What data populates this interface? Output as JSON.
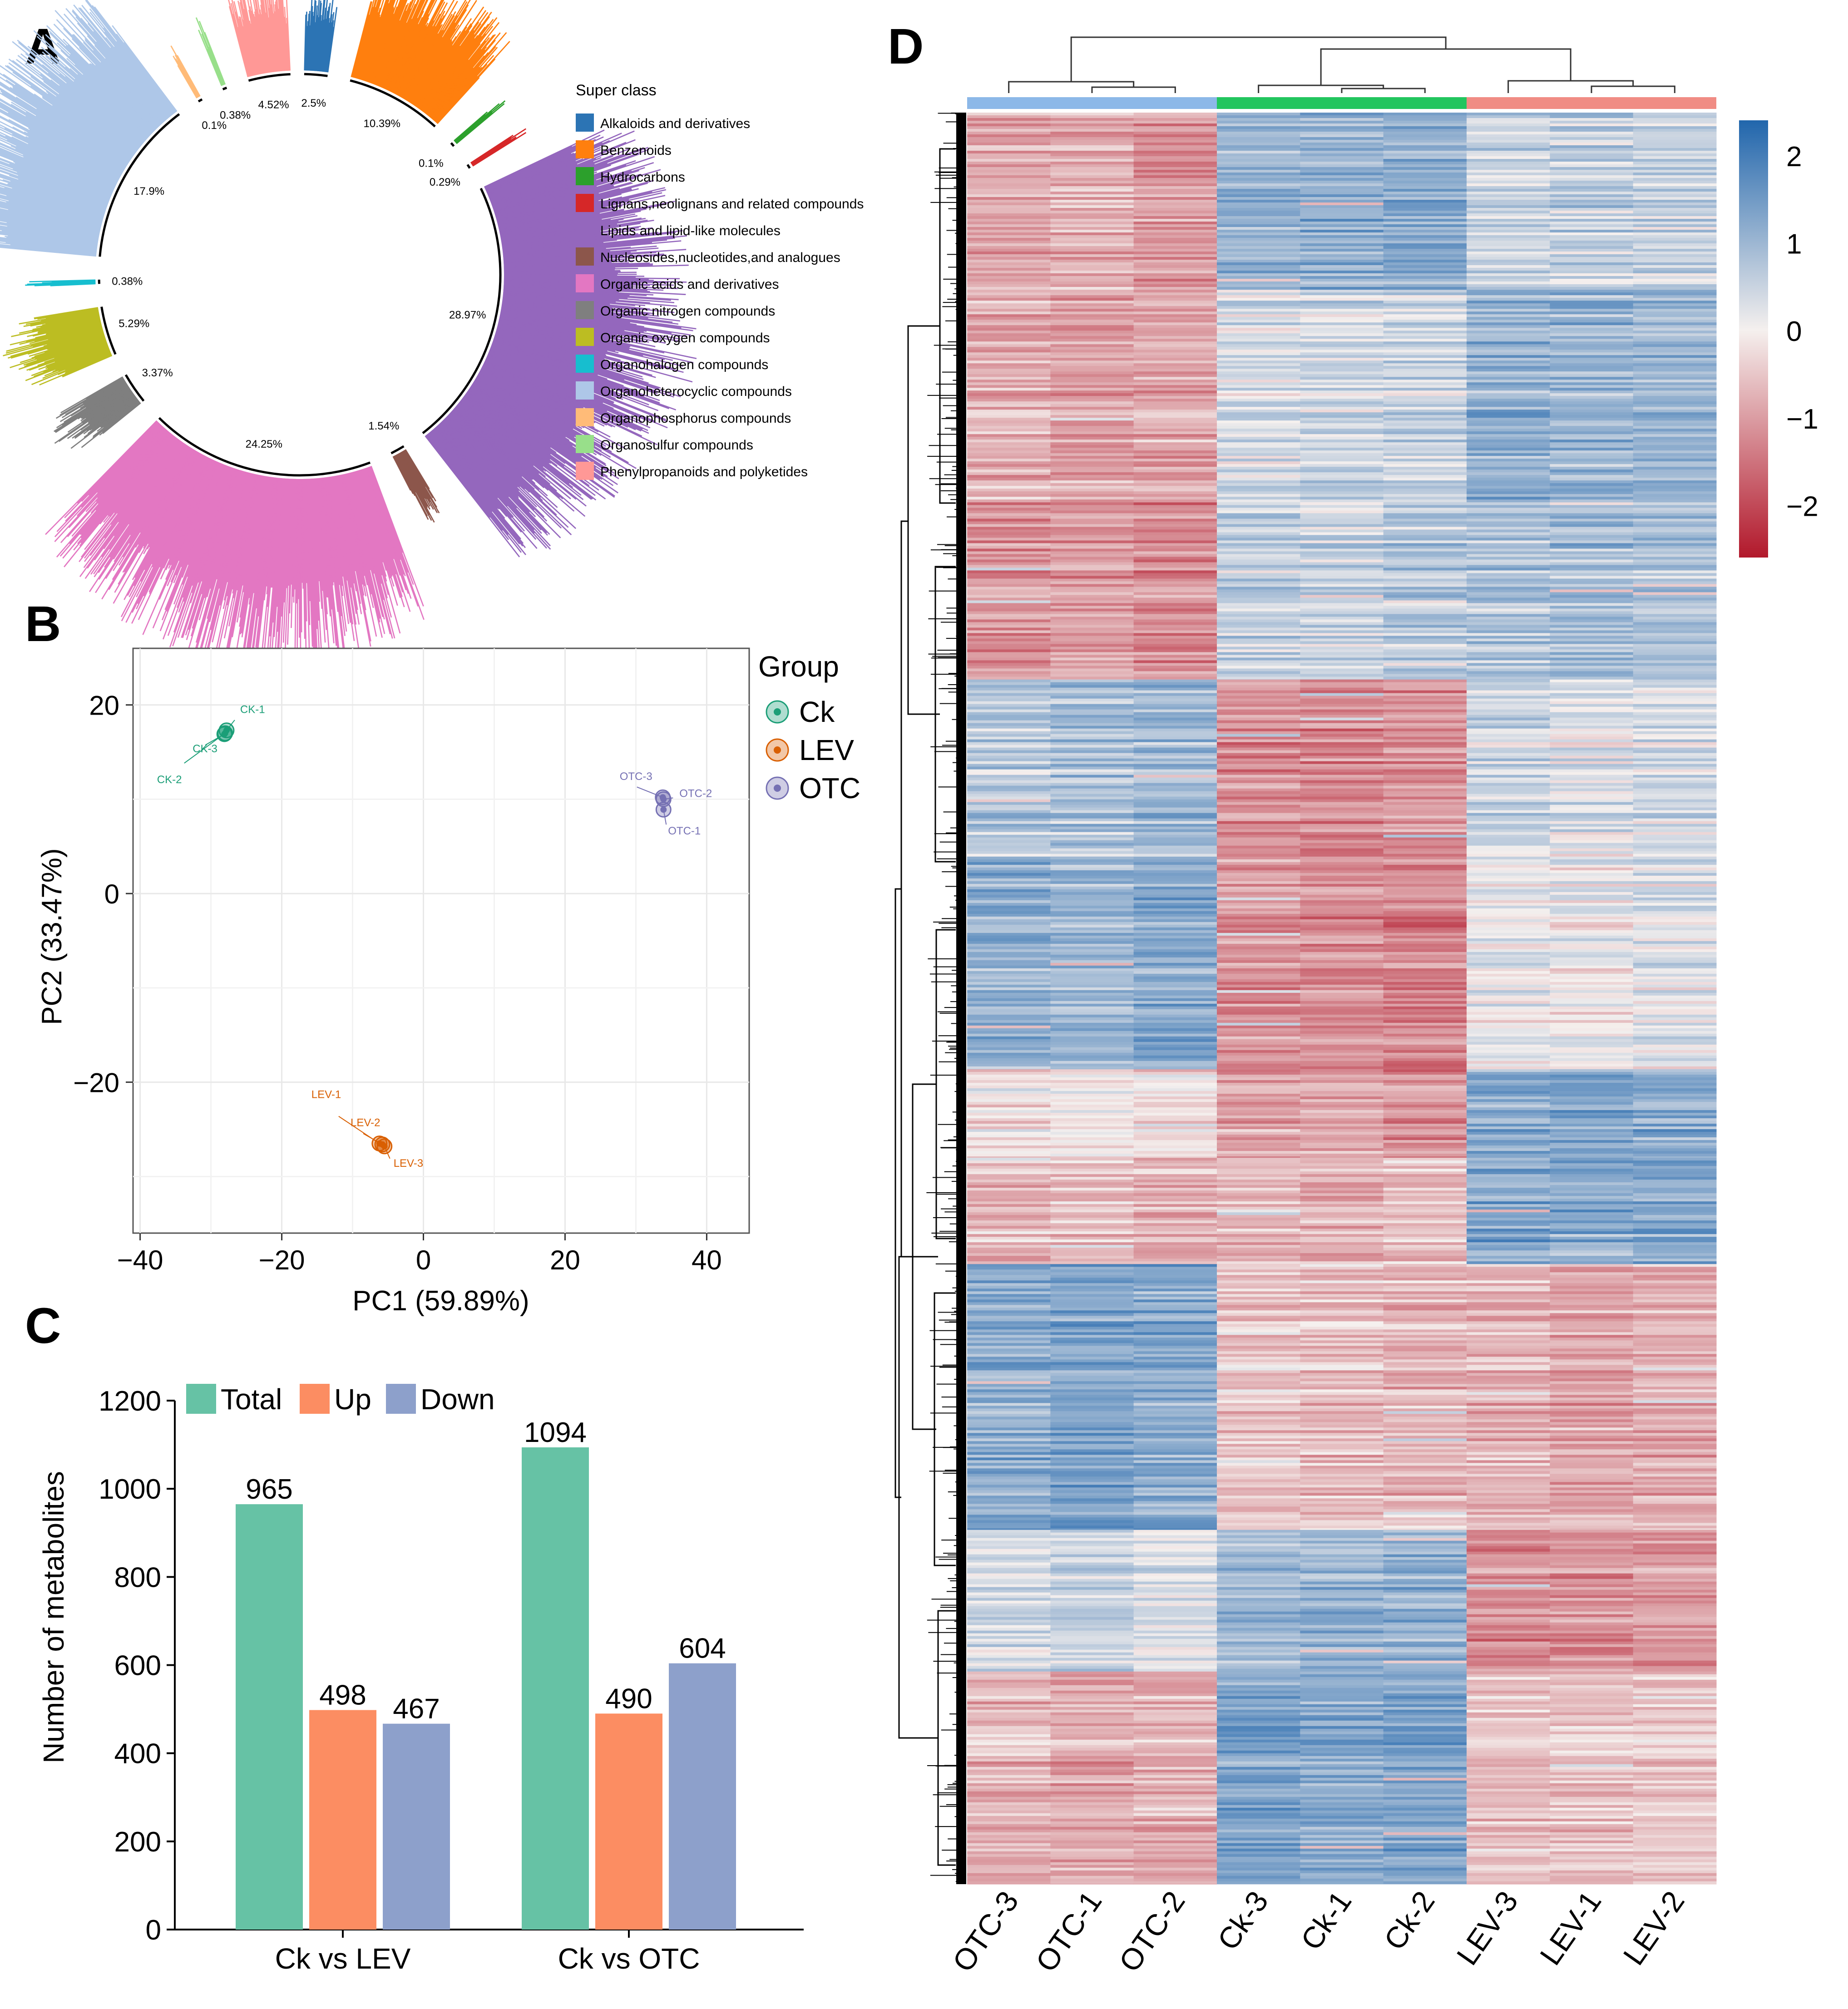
{
  "panels": {
    "A": "A",
    "B": "B",
    "C": "C",
    "D": "D"
  },
  "chart_data": [
    {
      "panel": "A",
      "type": "pie",
      "style": "circular radial bar plot",
      "legend_title": "Super class",
      "legend_position": "right",
      "slices": [
        {
          "name": "Alkaloids and derivatives",
          "percent": 2.5,
          "label": "2.5%",
          "color": "#2c74b4"
        },
        {
          "name": "Benzenoids",
          "percent": 10.39,
          "label": "10.39%",
          "color": "#ff7f0e"
        },
        {
          "name": "Hydrocarbons",
          "percent": 0.1,
          "label": "0.1%",
          "color": "#2ca02c"
        },
        {
          "name": "Lignans,neolignans and related compounds",
          "percent": 0.29,
          "label": "0.29%",
          "color": "#d62728"
        },
        {
          "name": "Lipids and lipid-like molecules",
          "percent": 28.97,
          "label": "28.97%",
          "color": "#9467bd"
        },
        {
          "name": "Nucleosides,nucleotides,and analogues",
          "percent": 1.54,
          "label": "1.54%",
          "color": "#8c564b"
        },
        {
          "name": "Organic acids and derivatives",
          "percent": 24.25,
          "label": "24.25%",
          "color": "#e377c2"
        },
        {
          "name": "Organic nitrogen compounds",
          "percent": 3.37,
          "label": "3.37%",
          "color": "#7f7f7f"
        },
        {
          "name": "Organic oxygen compounds",
          "percent": 5.29,
          "label": "5.29%",
          "color": "#bcbd22"
        },
        {
          "name": "Organohalogen compounds",
          "percent": 0.38,
          "label": "0.38%",
          "color": "#17becf"
        },
        {
          "name": "Organoheterocyclic compounds",
          "percent": 17.9,
          "label": "17.9%",
          "color": "#aec7e8"
        },
        {
          "name": "Organophosphorus compounds",
          "percent": 0.1,
          "label": "0.1%",
          "color": "#ffbb78"
        },
        {
          "name": "Organosulfur compounds",
          "percent": 0.38,
          "label": "0.38%",
          "color": "#98df8a"
        },
        {
          "name": "Phenylpropanoids and polyketides",
          "percent": 4.52,
          "label": "4.52%",
          "color": "#ff9896"
        }
      ]
    },
    {
      "panel": "B",
      "type": "scatter",
      "xlabel": "PC1 (59.89%)",
      "ylabel": "PC2 (33.47%)",
      "xlim": [
        -41,
        46
      ],
      "ylim": [
        -36,
        26
      ],
      "xticks": [
        -40,
        -20,
        0,
        20,
        40
      ],
      "yticks": [
        20,
        0,
        -20
      ],
      "grid": true,
      "legend_title": "Group",
      "legend_position": "right",
      "groups": [
        {
          "name": "Ck",
          "color": "#1b9e77",
          "points": [
            {
              "label": "CK-1",
              "x": -27.8,
              "y": 17.3
            },
            {
              "label": "CK-3",
              "x": -28.1,
              "y": 16.9
            },
            {
              "label": "CK-2",
              "x": -28.0,
              "y": 17.0
            }
          ]
        },
        {
          "name": "LEV",
          "color": "#d95f02",
          "points": [
            {
              "label": "LEV-1",
              "x": -6.2,
              "y": -26.5
            },
            {
              "label": "LEV-2",
              "x": -5.8,
              "y": -26.6
            },
            {
              "label": "LEV-3",
              "x": -5.5,
              "y": -26.8
            }
          ]
        },
        {
          "name": "OTC",
          "color": "#7570b3",
          "points": [
            {
              "label": "OTC-3",
              "x": 33.8,
              "y": 10.2
            },
            {
              "label": "OTC-2",
              "x": 33.9,
              "y": 10.0
            },
            {
              "label": "OTC-1",
              "x": 33.9,
              "y": 8.9
            }
          ]
        }
      ]
    },
    {
      "panel": "C",
      "type": "bar",
      "categories": [
        "Ck vs LEV",
        "Ck vs OTC"
      ],
      "series": [
        {
          "name": "Total",
          "color": "#66c2a5",
          "values": [
            965,
            1094
          ]
        },
        {
          "name": "Up",
          "color": "#fc8d62",
          "values": [
            498,
            490
          ]
        },
        {
          "name": "Down",
          "color": "#8da0cb",
          "values": [
            467,
            604
          ]
        }
      ],
      "xlabel": "",
      "ylabel": "Number of metabolites",
      "ylim": [
        0,
        1200
      ],
      "yticks": [
        0,
        200,
        400,
        600,
        800,
        1000,
        1200
      ],
      "legend_position": "top"
    },
    {
      "panel": "D",
      "type": "heatmap",
      "columns": [
        "OTC-3",
        "OTC-1",
        "OTC-2",
        "Ck-3",
        "Ck-1",
        "Ck-2",
        "LEV-3",
        "LEV-1",
        "LEV-2"
      ],
      "column_groups": [
        {
          "name": "OTC",
          "color": "#8cb8e8",
          "columns": [
            "OTC-3",
            "OTC-1",
            "OTC-2"
          ]
        },
        {
          "name": "Ck",
          "color": "#22c55e",
          "columns": [
            "Ck-3",
            "Ck-1",
            "Ck-2"
          ]
        },
        {
          "name": "LEV",
          "color": "#f08c84",
          "columns": [
            "LEV-3",
            "LEV-1",
            "LEV-2"
          ]
        }
      ],
      "row_blocks": [
        {
          "rows_fraction": 0.1,
          "values": [
            -0.9,
            -0.8,
            -1.1,
            1.0,
            1.1,
            1.2,
            0.5,
            0.6,
            0.5
          ]
        },
        {
          "rows_fraction": 0.12,
          "values": [
            -0.8,
            -1.0,
            -0.9,
            0.3,
            0.4,
            0.5,
            1.1,
            1.0,
            1.0
          ]
        },
        {
          "rows_fraction": 0.1,
          "values": [
            -1.1,
            -1.0,
            -1.2,
            0.6,
            0.5,
            0.7,
            0.8,
            0.9,
            0.8
          ]
        },
        {
          "rows_fraction": 0.1,
          "values": [
            0.7,
            0.8,
            0.9,
            -1.2,
            -1.3,
            -1.2,
            0.4,
            0.2,
            0.3
          ]
        },
        {
          "rows_fraction": 0.12,
          "values": [
            1.1,
            1.0,
            1.2,
            -1.1,
            -1.2,
            -1.3,
            0.1,
            0.0,
            0.2
          ]
        },
        {
          "rows_fraction": 0.05,
          "values": [
            -0.2,
            -0.1,
            -0.3,
            -1.0,
            -0.9,
            -1.1,
            1.2,
            1.3,
            1.2
          ]
        },
        {
          "rows_fraction": 0.06,
          "values": [
            -0.6,
            -0.5,
            -0.7,
            -0.6,
            -0.7,
            -0.5,
            1.3,
            1.2,
            1.3
          ]
        },
        {
          "rows_fraction": 0.15,
          "values": [
            1.2,
            1.3,
            1.2,
            -0.5,
            -0.6,
            -0.7,
            -0.7,
            -0.9,
            -0.8
          ]
        },
        {
          "rows_fraction": 0.08,
          "values": [
            0.4,
            0.5,
            0.3,
            1.0,
            1.1,
            1.1,
            -1.2,
            -1.1,
            -1.0
          ]
        },
        {
          "rows_fraction": 0.12,
          "values": [
            -0.7,
            -0.9,
            -0.8,
            1.3,
            1.2,
            1.3,
            -0.6,
            -0.6,
            -0.5
          ]
        }
      ],
      "color_scale": {
        "min": -2.6,
        "max": 2.4,
        "low": "#b2182b",
        "mid": "#f5f0ee",
        "high": "#2166ac"
      },
      "colorbar_ticks": [
        2,
        1,
        0,
        -1,
        -2
      ],
      "colorbar_labels": [
        "2",
        "1",
        "0",
        "−1",
        "−2"
      ],
      "row_dendrogram": true,
      "column_dendrogram": true
    }
  ]
}
